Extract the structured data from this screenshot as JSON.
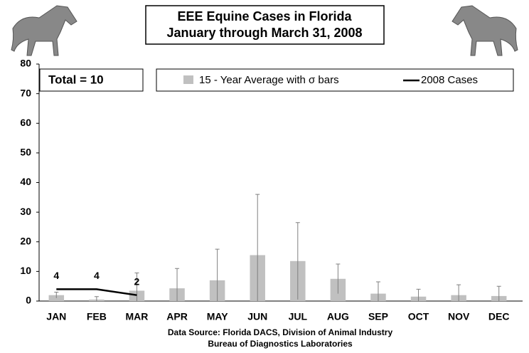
{
  "chart_data": {
    "type": "bar",
    "title": [
      "EEE Equine Cases in Florida",
      "January through March 31, 2008"
    ],
    "annotation": "Total = 10",
    "source": [
      "Data Source: Florida DACS, Division of Animal Industry",
      "Bureau of Diagnostics Laboratories"
    ],
    "categories": [
      "JAN",
      "FEB",
      "MAR",
      "APR",
      "MAY",
      "JUN",
      "JUL",
      "AUG",
      "SEP",
      "OCT",
      "NOV",
      "DEC"
    ],
    "series": [
      {
        "name": "15 - Year Average with σ bars",
        "type": "bar",
        "color": "#c0c0c0",
        "values": [
          2,
          0.5,
          3.5,
          4.3,
          7,
          15.5,
          13.5,
          7.5,
          2.5,
          1.5,
          2,
          1.7
        ],
        "errors": [
          1,
          1,
          6,
          6.7,
          10.5,
          20.5,
          13,
          5,
          4,
          2.5,
          3.5,
          3.3
        ]
      },
      {
        "name": "2008 Cases",
        "type": "line",
        "color": "#000000",
        "values": [
          4,
          4,
          2,
          null,
          null,
          null,
          null,
          null,
          null,
          null,
          null,
          null
        ]
      }
    ],
    "ylim": [
      0,
      80
    ],
    "yticks": [
      0,
      10,
      20,
      30,
      40,
      50,
      60,
      70,
      80
    ],
    "grid": false
  }
}
